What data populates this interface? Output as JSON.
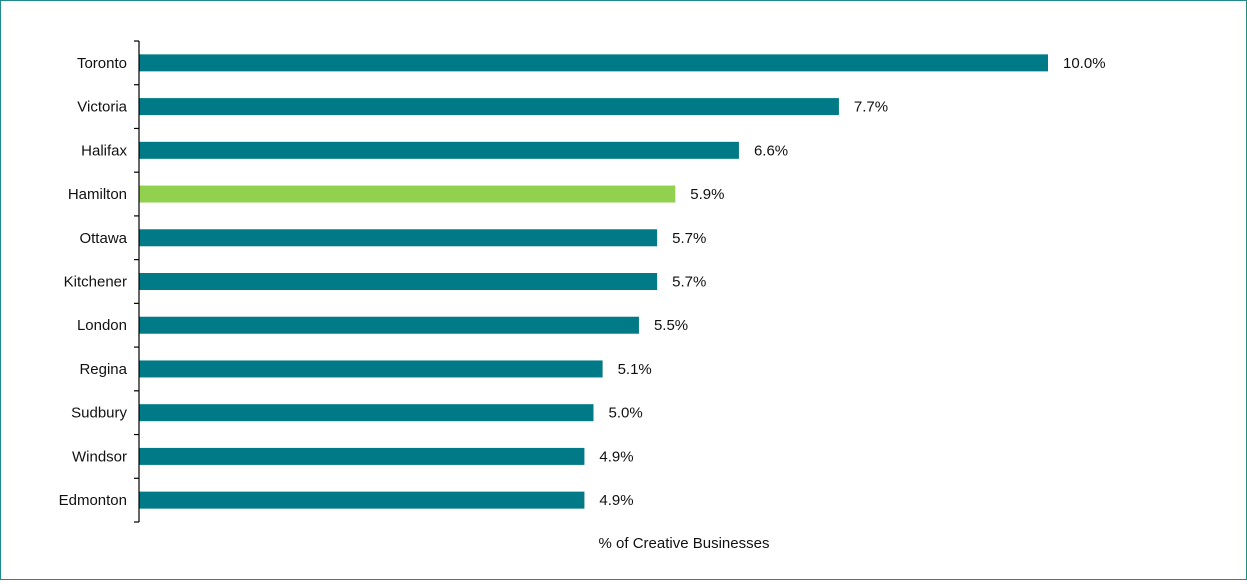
{
  "chart_data": {
    "type": "bar",
    "orientation": "horizontal",
    "categories": [
      "Toronto",
      "Victoria",
      "Halifax",
      "Hamilton",
      "Ottawa",
      "Kitchener",
      "London",
      "Regina",
      "Sudbury",
      "Windsor",
      "Edmonton"
    ],
    "values": [
      10.0,
      7.7,
      6.6,
      5.9,
      5.7,
      5.7,
      5.5,
      5.1,
      5.0,
      4.9,
      4.9
    ],
    "value_labels": [
      "10.0%",
      "7.7%",
      "6.6%",
      "5.9%",
      "5.7%",
      "5.7%",
      "5.5%",
      "5.1%",
      "5.0%",
      "4.9%",
      "4.9%"
    ],
    "title": "",
    "xlabel": "% of Creative Businesses",
    "ylabel": "",
    "xlim": [
      0,
      10.0
    ],
    "grid": false,
    "legend": "none",
    "colors": {
      "default": "#007a87",
      "highlight": "#92d050",
      "highlight_category": "Hamilton",
      "frame": "#1f8a8a"
    }
  }
}
